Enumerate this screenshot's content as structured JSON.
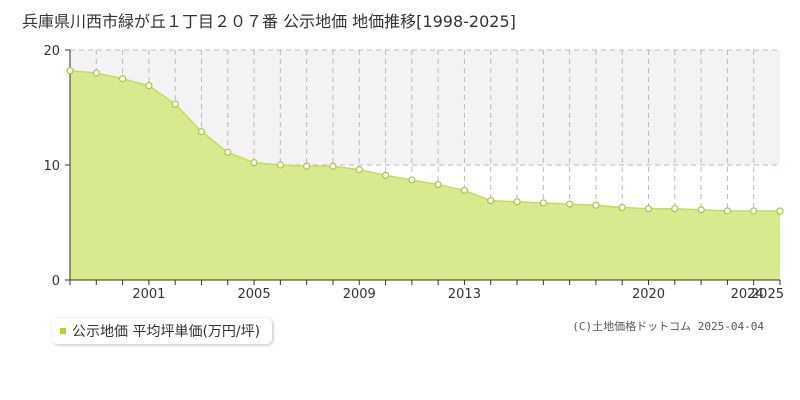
{
  "title": "兵庫県川西市緑が丘１丁目２０７番 公示地価 地価推移[1998-2025]",
  "legend_label": "公示地価 平均坪単価(万円/坪)",
  "copyright": "(C)土地価格ドットコム 2025-04-04",
  "colors": {
    "fill": "#d8ea8e",
    "line": "#c6dc5a",
    "marker_fill": "#ffffff",
    "marker_stroke": "#a8c83c",
    "legend_marker": "#b5d334",
    "grid": "#bbbbbb",
    "axis": "#333333",
    "band": "#f5f2f5"
  },
  "chart_data": {
    "type": "area",
    "title": "兵庫県川西市緑が丘１丁目２０７番 公示地価 地価推移[1998-2025]",
    "xlabel": "",
    "ylabel": "",
    "ylim": [
      0,
      20
    ],
    "xlim": [
      1998,
      2025
    ],
    "yticks": [
      0,
      10,
      20
    ],
    "xtick_labels": [
      "2001",
      "2005",
      "2009",
      "2013",
      "2020",
      "2024",
      "2025"
    ],
    "grid": true,
    "legend_position": "bottom-left",
    "series": [
      {
        "name": "公示地価 平均坪単価(万円/坪)",
        "x": [
          1998,
          1999,
          2000,
          2001,
          2002,
          2003,
          2004,
          2005,
          2006,
          2007,
          2008,
          2009,
          2010,
          2011,
          2012,
          2013,
          2014,
          2015,
          2016,
          2017,
          2018,
          2019,
          2020,
          2021,
          2022,
          2023,
          2024,
          2025
        ],
        "values": [
          18.2,
          18.0,
          17.5,
          16.9,
          15.3,
          12.9,
          11.1,
          10.2,
          10.0,
          9.9,
          9.9,
          9.6,
          9.1,
          8.7,
          8.3,
          7.8,
          6.9,
          6.8,
          6.7,
          6.6,
          6.5,
          6.3,
          6.2,
          6.2,
          6.1,
          6.0,
          6.0,
          6.0
        ]
      }
    ]
  }
}
